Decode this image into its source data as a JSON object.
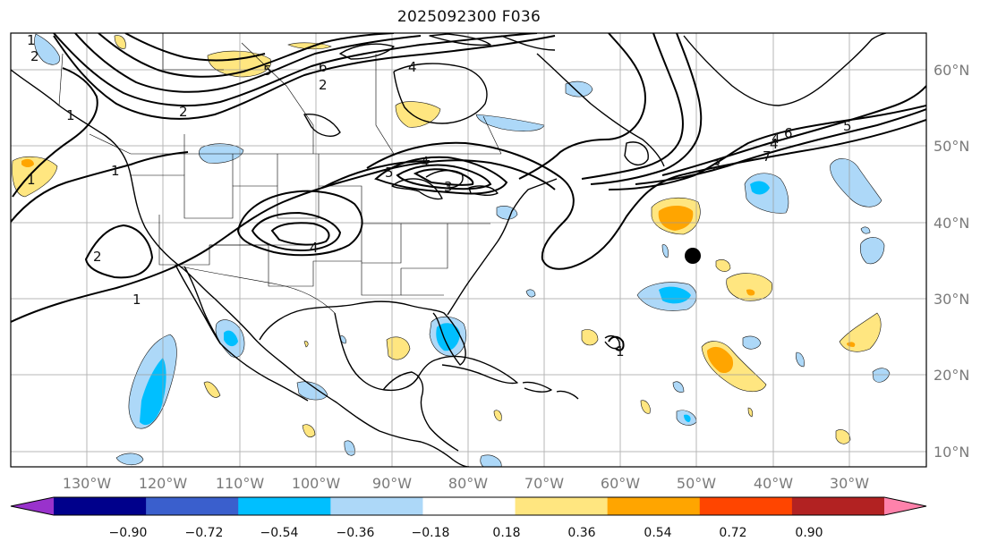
{
  "title": "2025092300 F036",
  "map": {
    "lon_labels": [
      "130°W",
      "120°W",
      "110°W",
      "100°W",
      "90°W",
      "80°W",
      "70°W",
      "60°W",
      "50°W",
      "40°W",
      "30°W"
    ],
    "lat_labels": [
      "60°N",
      "50°N",
      "40°N",
      "30°N",
      "20°N",
      "10°N"
    ],
    "contour_labels": [
      "1",
      "2",
      "1",
      "2",
      "5",
      "6",
      "2",
      "4",
      "1",
      "1",
      "4",
      "5",
      "4",
      "2",
      "4",
      "3",
      "6",
      "5",
      "4",
      "7",
      "3",
      "1",
      "1"
    ],
    "marker": "storm-center-dot"
  },
  "colorbar": {
    "tick_labels": [
      "−0.90",
      "−0.72",
      "−0.54",
      "−0.36",
      "−0.18",
      "0.18",
      "0.36",
      "0.54",
      "0.72",
      "0.90"
    ],
    "colors": [
      "#9932cc",
      "#00008b",
      "#3a5fcd",
      "#00bfff",
      "#add8f8",
      "#ffffff",
      "#ffe680",
      "#ffa500",
      "#ff4500",
      "#b22222",
      "#ff82ab"
    ]
  }
}
